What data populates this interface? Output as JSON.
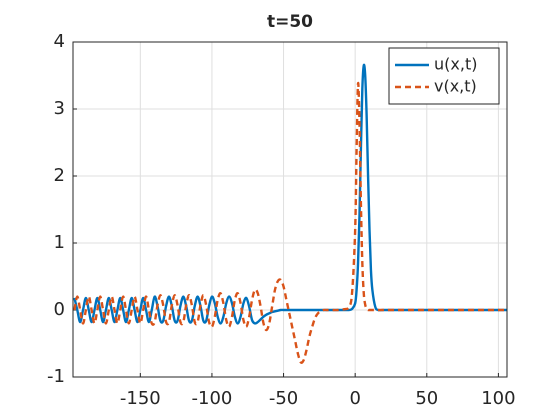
{
  "chart_data": {
    "type": "line",
    "title": "t=50",
    "x": [
      -196,
      -194,
      -192,
      -190,
      -188,
      -186,
      -184,
      -182,
      -180,
      -178,
      -176,
      -174,
      -172,
      -170,
      -168,
      -166,
      -164,
      -162,
      -160,
      -158,
      -156,
      -154,
      -152,
      -150,
      -148,
      -146,
      -144,
      -142,
      -140,
      -138,
      -136,
      -134,
      -132,
      -130,
      -128,
      -126,
      -124,
      -122,
      -120,
      -118,
      -116,
      -114,
      -112,
      -110,
      -108,
      -106,
      -104,
      -102,
      -100,
      -98,
      -96,
      -94,
      -92,
      -90,
      -88,
      -86,
      -84,
      -82,
      -80,
      -78,
      -76,
      -74,
      -72,
      -70,
      -68,
      -66,
      -64,
      -62,
      -60,
      -58,
      -56,
      -54,
      -52,
      -50,
      -48,
      -46,
      -44,
      -42,
      -40,
      -38,
      -36,
      -34,
      -32,
      -30,
      -28,
      -26,
      -24,
      -22,
      -20,
      -16,
      -12,
      -8,
      -4,
      -2,
      0,
      1,
      2,
      3,
      4,
      5,
      6,
      7,
      8,
      9,
      10,
      11,
      12,
      14,
      16,
      20,
      30,
      40,
      50,
      60,
      70,
      80,
      90,
      100,
      106
    ],
    "series": [
      {
        "name": "u(x,t)",
        "color": "#0072BD",
        "dash": false,
        "values": [
          0.18,
          0,
          -0.18,
          0,
          0.18,
          0,
          -0.18,
          0,
          0.18,
          0,
          -0.18,
          0,
          0.18,
          0,
          -0.18,
          0,
          0.18,
          0,
          -0.18,
          0,
          0.18,
          0,
          -0.18,
          0,
          0.18,
          0,
          -0.18,
          0,
          0.2,
          0.06,
          -0.16,
          -0.16,
          0.06,
          0.2,
          0.06,
          -0.16,
          -0.16,
          0.06,
          0.2,
          0.06,
          -0.16,
          -0.16,
          0.06,
          0.2,
          0.06,
          -0.16,
          -0.16,
          0.06,
          0.2,
          0.1,
          -0.1,
          -0.2,
          -0.1,
          0.1,
          0.2,
          0.1,
          -0.1,
          -0.2,
          -0.1,
          0.1,
          0.18,
          0.05,
          -0.15,
          -0.2,
          -0.18,
          -0.14,
          -0.1,
          -0.07,
          -0.05,
          -0.03,
          -0.02,
          -0.01,
          0,
          0,
          0,
          0,
          0,
          0,
          0,
          0,
          0,
          0,
          0,
          0,
          0,
          0,
          0,
          0,
          0,
          0,
          0,
          0,
          0,
          0.02,
          0.1,
          0.3,
          0.7,
          1.4,
          2.4,
          3.3,
          3.65,
          3.5,
          2.9,
          2.0,
          1.2,
          0.6,
          0.3,
          0.05,
          0,
          0,
          0,
          0,
          0,
          0,
          0,
          0,
          0,
          0,
          0
        ]
      },
      {
        "name": "v(x,t)",
        "color": "#D95319",
        "dash": true,
        "values": [
          0,
          0.2,
          0,
          -0.2,
          0,
          0.2,
          0,
          -0.2,
          0,
          0.2,
          0,
          -0.2,
          0,
          0.2,
          0,
          -0.2,
          0,
          0.2,
          0,
          -0.2,
          0,
          0.2,
          0,
          -0.2,
          0,
          0.2,
          0,
          -0.2,
          -0.18,
          0.07,
          0.22,
          0.07,
          -0.18,
          -0.18,
          0.07,
          0.22,
          0.07,
          -0.18,
          -0.18,
          0.07,
          0.22,
          0.07,
          -0.18,
          -0.18,
          0.07,
          0.22,
          0.07,
          -0.18,
          -0.25,
          -0.1,
          0.15,
          0.25,
          0.1,
          -0.15,
          -0.25,
          -0.1,
          0.15,
          0.25,
          0.1,
          -0.15,
          -0.25,
          -0.1,
          0.15,
          0.3,
          0.25,
          0.05,
          -0.2,
          -0.3,
          -0.2,
          0.05,
          0.3,
          0.43,
          0.45,
          0.35,
          0.15,
          -0.05,
          -0.25,
          -0.45,
          -0.65,
          -0.78,
          -0.75,
          -0.6,
          -0.4,
          -0.25,
          -0.12,
          -0.05,
          -0.02,
          0,
          0,
          0,
          0,
          0.01,
          0.05,
          0.3,
          1.2,
          2.4,
          3.38,
          2.8,
          1.6,
          0.7,
          0.25,
          0.08,
          0.02,
          0,
          0,
          0,
          0,
          0,
          0,
          0,
          0,
          0,
          0,
          0,
          0,
          0,
          0,
          0,
          0
        ]
      }
    ],
    "xlim": [
      -197,
      106
    ],
    "ylim": [
      -1,
      4
    ],
    "xticks": [
      -150,
      -100,
      -50,
      0,
      50,
      100
    ],
    "yticks": [
      -1,
      0,
      1,
      2,
      3,
      4
    ],
    "grid": true,
    "legend": "top-right"
  }
}
